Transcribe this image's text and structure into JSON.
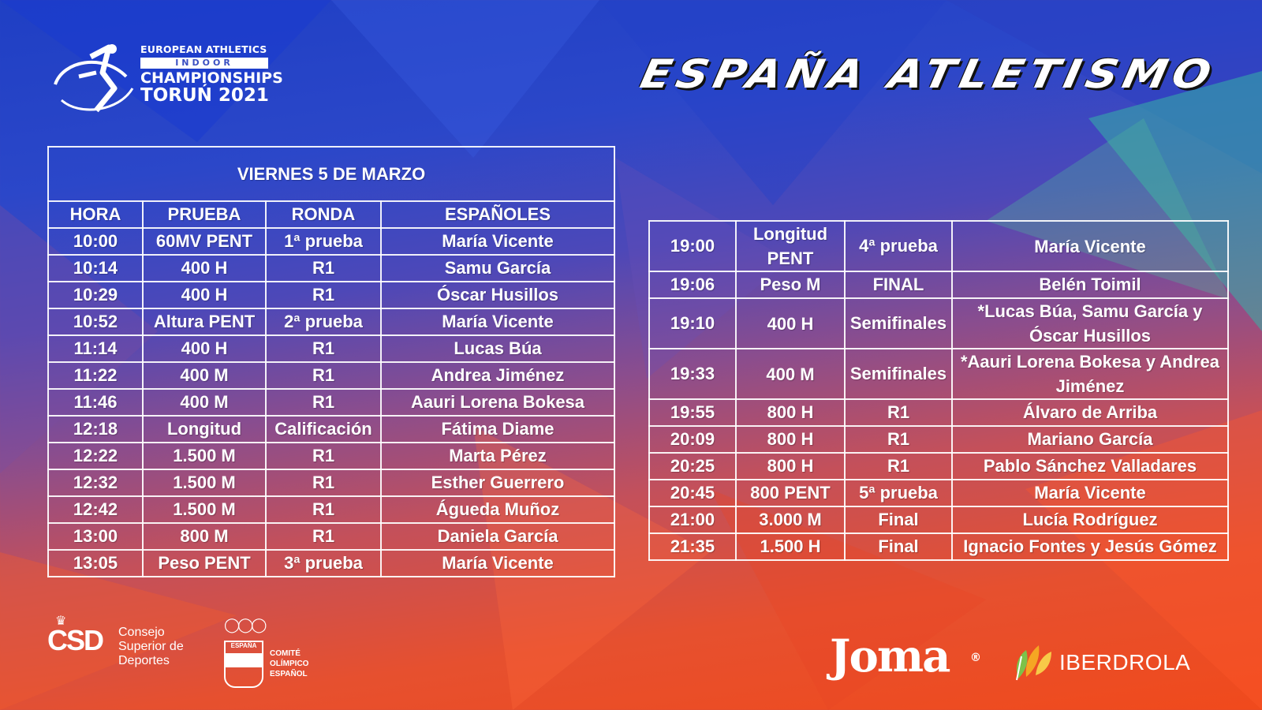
{
  "event_logo": {
    "org": "EUROPEAN ATHLETICS",
    "indoor": "INDOOR",
    "championships": "CHAMPIONSHIPS",
    "city_year": "TORUŃ 2021"
  },
  "brand_title": "ESPAÑA ATLETISMO",
  "left_table": {
    "title": "VIERNES 5 DE MARZO",
    "headers": [
      "HORA",
      "PRUEBA",
      "RONDA",
      "ESPAÑOLES"
    ],
    "rows": [
      {
        "hora": "10:00",
        "prueba": "60MV PENT",
        "ronda": "1ª prueba",
        "espanoles": "María Vicente"
      },
      {
        "hora": "10:14",
        "prueba": "400 H",
        "ronda": "R1",
        "espanoles": "Samu García"
      },
      {
        "hora": "10:29",
        "prueba": "400 H",
        "ronda": "R1",
        "espanoles": "Óscar Husillos"
      },
      {
        "hora": "10:52",
        "prueba": "Altura PENT",
        "ronda": "2ª prueba",
        "espanoles": "María Vicente"
      },
      {
        "hora": "11:14",
        "prueba": "400 H",
        "ronda": "R1",
        "espanoles": "Lucas Búa"
      },
      {
        "hora": "11:22",
        "prueba": "400 M",
        "ronda": "R1",
        "espanoles": "Andrea Jiménez"
      },
      {
        "hora": "11:46",
        "prueba": "400 M",
        "ronda": "R1",
        "espanoles": "Aauri Lorena Bokesa"
      },
      {
        "hora": "12:18",
        "prueba": "Longitud",
        "ronda": "Calificación",
        "espanoles": "Fátima Diame"
      },
      {
        "hora": "12:22",
        "prueba": "1.500 M",
        "ronda": "R1",
        "espanoles": "Marta Pérez"
      },
      {
        "hora": "12:32",
        "prueba": "1.500 M",
        "ronda": "R1",
        "espanoles": "Esther Guerrero"
      },
      {
        "hora": "12:42",
        "prueba": "1.500 M",
        "ronda": "R1",
        "espanoles": "Águeda Muñoz"
      },
      {
        "hora": "13:00",
        "prueba": "800 M",
        "ronda": "R1",
        "espanoles": "Daniela García"
      },
      {
        "hora": "13:05",
        "prueba": "Peso PENT",
        "ronda": "3ª prueba",
        "espanoles": "María Vicente"
      }
    ]
  },
  "right_table": {
    "rows": [
      {
        "hora": "19:00",
        "prueba": "Longitud PENT",
        "ronda": "4ª prueba",
        "espanoles": "María Vicente",
        "tall": true
      },
      {
        "hora": "19:06",
        "prueba": "Peso M",
        "ronda": "FINAL",
        "espanoles": "Belén Toimil",
        "tall": false
      },
      {
        "hora": "19:10",
        "prueba": "400 H",
        "ronda": "Semifinales",
        "espanoles": "*Lucas Búa, Samu García y Óscar Husillos",
        "tall": true
      },
      {
        "hora": "19:33",
        "prueba": "400 M",
        "ronda": "Semifinales",
        "espanoles": "*Aauri Lorena Bokesa y Andrea Jiménez",
        "tall": true
      },
      {
        "hora": "19:55",
        "prueba": "800 H",
        "ronda": "R1",
        "espanoles": "Álvaro de Arriba",
        "tall": false
      },
      {
        "hora": "20:09",
        "prueba": "800 H",
        "ronda": "R1",
        "espanoles": "Mariano García",
        "tall": false
      },
      {
        "hora": "20:25",
        "prueba": "800 H",
        "ronda": "R1",
        "espanoles": "Pablo Sánchez Valladares",
        "tall": false
      },
      {
        "hora": "20:45",
        "prueba": "800 PENT",
        "ronda": "5ª prueba",
        "espanoles": "María Vicente",
        "tall": false
      },
      {
        "hora": "21:00",
        "prueba": "3.000 M",
        "ronda": "Final",
        "espanoles": "Lucía Rodríguez",
        "tall": false
      },
      {
        "hora": "21:35",
        "prueba": "1.500 H",
        "ronda": "Final",
        "espanoles": "Ignacio Fontes y Jesús Gómez",
        "tall": false
      }
    ]
  },
  "sponsors": {
    "csd_mark": "CSD",
    "csd_lines": [
      "Consejo",
      "Superior de",
      "Deportes"
    ],
    "coe_shield": "ESPAÑA",
    "coe_lines": [
      "COMITÉ",
      "OLÍMPICO",
      "ESPAÑOL"
    ],
    "joma": "Joma",
    "joma_reg": "®",
    "iberdrola": "IBERDROLA"
  },
  "colors": {
    "bg_top": "#1f3fc4",
    "bg_bottom": "#f04a1c",
    "text": "#ffffff"
  }
}
